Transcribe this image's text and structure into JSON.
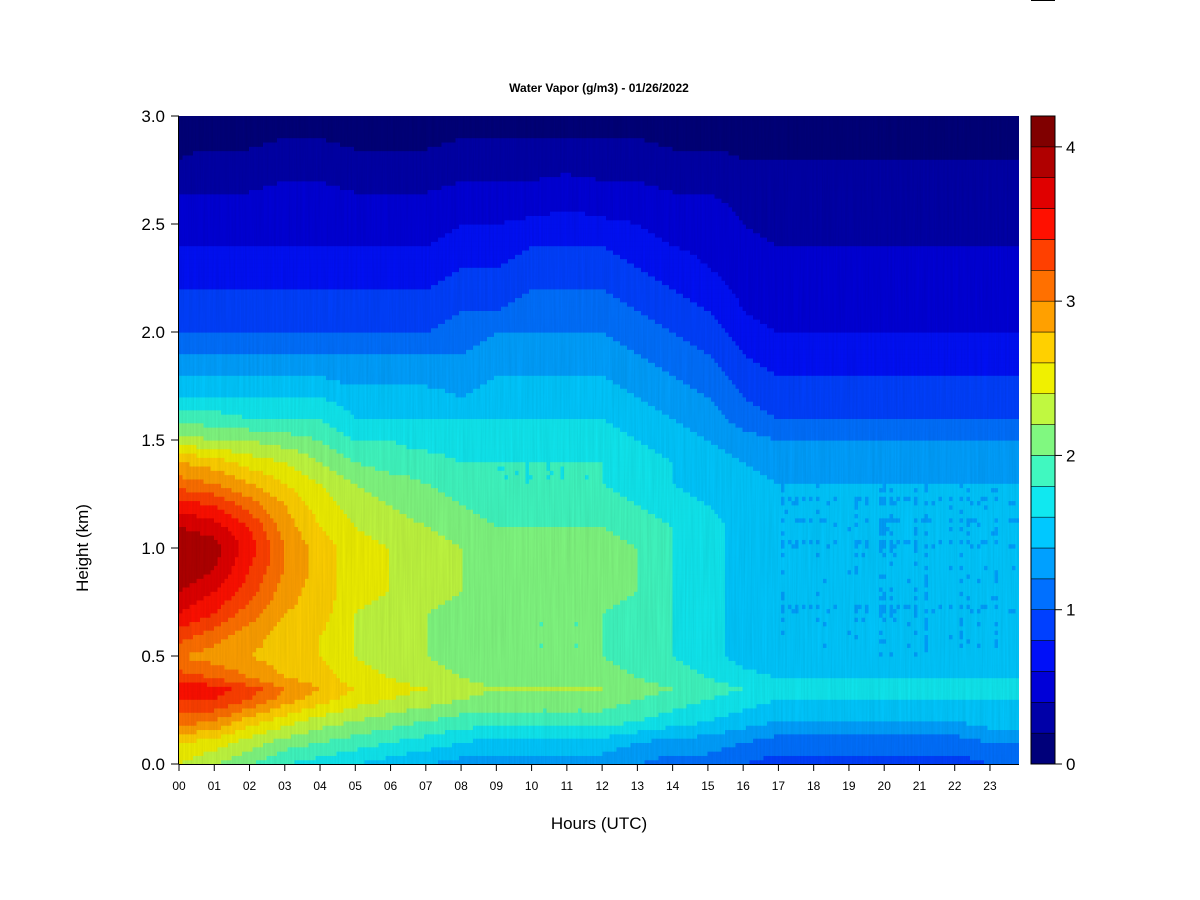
{
  "chart_data": {
    "type": "heatmap",
    "title": "Water Vapor (g/m3) - 01/26/2022",
    "xlabel": "Hours (UTC)",
    "ylabel": "Height (km)",
    "xlim": [
      0,
      24
    ],
    "ylim": [
      0.0,
      3.0
    ],
    "x_ticks": [
      "00",
      "01",
      "02",
      "03",
      "04",
      "05",
      "06",
      "07",
      "08",
      "09",
      "10",
      "11",
      "12",
      "13",
      "14",
      "15",
      "16",
      "17",
      "18",
      "19",
      "20",
      "21",
      "22",
      "23"
    ],
    "y_ticks": [
      "0.0",
      "0.5",
      "1.0",
      "1.5",
      "2.0",
      "2.5",
      "3.0"
    ],
    "colorbar": {
      "min": 0,
      "max": 4.2,
      "ticks": [
        "0",
        "1",
        "2",
        "3",
        "4"
      ],
      "colors": [
        "#00007a",
        "#0000a8",
        "#0000d8",
        "#0010f8",
        "#0040ff",
        "#0070ff",
        "#00a0ff",
        "#00c8ff",
        "#10e8f0",
        "#40f8c0",
        "#80f880",
        "#c0f840",
        "#f0f000",
        "#ffd000",
        "#ffa000",
        "#ff7000",
        "#ff4000",
        "#ff1000",
        "#e00000",
        "#b00000",
        "#800000"
      ]
    },
    "x_hours": [
      0,
      1,
      2,
      3,
      4,
      5,
      6,
      7,
      8,
      9,
      10,
      11,
      12,
      13,
      14,
      15,
      16,
      17,
      18,
      19,
      20,
      21,
      22,
      23,
      24
    ],
    "heights_km": [
      0.0,
      0.1,
      0.2,
      0.3,
      0.35,
      0.4,
      0.5,
      0.6,
      0.7,
      0.8,
      0.9,
      1.0,
      1.1,
      1.2,
      1.3,
      1.4,
      1.5,
      1.6,
      1.7,
      1.8,
      1.9,
      2.0,
      2.1,
      2.2,
      2.3,
      2.4,
      2.5,
      2.6,
      2.7,
      2.8,
      2.9,
      3.0
    ],
    "values": [
      [
        2.4,
        2.6,
        3.1,
        3.4,
        3.6,
        3.3,
        3.0,
        3.3,
        3.6,
        3.8,
        4.0,
        4.0,
        3.8,
        3.5,
        3.1,
        2.8,
        2.3,
        1.9,
        1.6,
        1.4,
        1.2,
        1.0,
        0.9,
        0.8,
        0.7,
        0.6,
        0.5,
        0.45,
        0.3,
        0.2,
        0.15,
        0.1
      ],
      [
        2.2,
        2.5,
        3.0,
        3.4,
        3.5,
        3.2,
        2.9,
        3.1,
        3.4,
        3.6,
        3.8,
        3.9,
        3.7,
        3.4,
        3.0,
        2.7,
        2.2,
        1.9,
        1.6,
        1.4,
        1.2,
        1.0,
        0.9,
        0.8,
        0.7,
        0.6,
        0.5,
        0.45,
        0.35,
        0.25,
        0.15,
        0.1
      ],
      [
        2.0,
        2.3,
        2.7,
        3.2,
        3.3,
        3.0,
        2.8,
        2.9,
        3.1,
        3.3,
        3.4,
        3.5,
        3.4,
        3.1,
        2.8,
        2.5,
        2.2,
        1.8,
        1.6,
        1.4,
        1.2,
        1.0,
        0.9,
        0.8,
        0.7,
        0.6,
        0.5,
        0.45,
        0.35,
        0.25,
        0.15,
        0.1
      ],
      [
        1.8,
        2.1,
        2.5,
        2.9,
        3.0,
        2.8,
        2.7,
        2.7,
        2.8,
        2.9,
        3.0,
        3.0,
        2.9,
        2.8,
        2.6,
        2.4,
        2.1,
        1.8,
        1.6,
        1.4,
        1.2,
        1.0,
        0.9,
        0.8,
        0.7,
        0.6,
        0.55,
        0.5,
        0.4,
        0.3,
        0.2,
        0.1
      ],
      [
        1.7,
        2.0,
        2.3,
        2.7,
        2.8,
        2.7,
        2.6,
        2.6,
        2.7,
        2.7,
        2.7,
        2.7,
        2.6,
        2.5,
        2.4,
        2.2,
        2.0,
        1.8,
        1.6,
        1.4,
        1.2,
        1.0,
        0.9,
        0.8,
        0.7,
        0.6,
        0.55,
        0.5,
        0.4,
        0.3,
        0.2,
        0.1
      ],
      [
        1.6,
        1.9,
        2.2,
        2.5,
        2.6,
        2.5,
        2.4,
        2.4,
        2.4,
        2.5,
        2.5,
        2.5,
        2.4,
        2.3,
        2.2,
        2.0,
        1.8,
        1.6,
        1.5,
        1.3,
        1.2,
        1.0,
        0.9,
        0.8,
        0.7,
        0.6,
        0.5,
        0.45,
        0.35,
        0.25,
        0.15,
        0.1
      ],
      [
        1.5,
        1.8,
        2.1,
        2.4,
        2.5,
        2.4,
        2.3,
        2.3,
        2.3,
        2.4,
        2.4,
        2.4,
        2.3,
        2.2,
        2.1,
        1.9,
        1.8,
        1.6,
        1.5,
        1.3,
        1.2,
        1.0,
        0.9,
        0.8,
        0.7,
        0.6,
        0.5,
        0.45,
        0.35,
        0.25,
        0.15,
        0.1
      ],
      [
        1.4,
        1.7,
        2.0,
        2.3,
        2.4,
        2.3,
        2.2,
        2.2,
        2.2,
        2.3,
        2.3,
        2.3,
        2.2,
        2.1,
        2.0,
        1.9,
        1.7,
        1.6,
        1.5,
        1.3,
        1.2,
        1.0,
        0.9,
        0.8,
        0.7,
        0.6,
        0.5,
        0.45,
        0.35,
        0.25,
        0.15,
        0.1
      ],
      [
        1.3,
        1.6,
        1.9,
        2.2,
        2.3,
        2.2,
        2.1,
        2.1,
        2.1,
        2.2,
        2.2,
        2.2,
        2.1,
        2.0,
        1.9,
        1.8,
        1.7,
        1.6,
        1.4,
        1.3,
        1.2,
        1.1,
        1.0,
        0.9,
        0.8,
        0.7,
        0.6,
        0.5,
        0.4,
        0.3,
        0.2,
        0.1
      ],
      [
        1.3,
        1.5,
        1.9,
        2.1,
        2.2,
        2.1,
        2.0,
        2.0,
        2.0,
        2.1,
        2.1,
        2.1,
        2.0,
        1.9,
        1.8,
        1.8,
        1.7,
        1.6,
        1.5,
        1.4,
        1.3,
        1.2,
        1.0,
        0.9,
        0.8,
        0.7,
        0.6,
        0.5,
        0.4,
        0.3,
        0.2,
        0.1
      ],
      [
        1.3,
        1.5,
        1.9,
        2.1,
        2.2,
        2.1,
        2.0,
        2.0,
        2.0,
        2.1,
        2.1,
        2.1,
        2.0,
        1.9,
        1.8,
        1.8,
        1.7,
        1.6,
        1.5,
        1.4,
        1.3,
        1.2,
        1.1,
        1.0,
        0.9,
        0.8,
        0.65,
        0.5,
        0.4,
        0.3,
        0.2,
        0.1
      ],
      [
        1.3,
        1.5,
        1.9,
        2.1,
        2.2,
        2.1,
        2.0,
        2.0,
        2.0,
        2.1,
        2.1,
        2.1,
        2.0,
        1.9,
        1.8,
        1.8,
        1.7,
        1.6,
        1.5,
        1.4,
        1.3,
        1.2,
        1.1,
        1.0,
        0.9,
        0.8,
        0.7,
        0.55,
        0.45,
        0.3,
        0.2,
        0.1
      ],
      [
        1.3,
        1.5,
        1.9,
        2.1,
        2.2,
        2.1,
        2.0,
        2.0,
        2.0,
        2.1,
        2.1,
        2.1,
        2.0,
        1.9,
        1.8,
        1.8,
        1.7,
        1.6,
        1.5,
        1.4,
        1.3,
        1.2,
        1.1,
        1.0,
        0.9,
        0.8,
        0.65,
        0.5,
        0.4,
        0.3,
        0.2,
        0.1
      ],
      [
        1.2,
        1.4,
        1.8,
        2.0,
        2.1,
        2.0,
        1.9,
        1.9,
        1.9,
        2.0,
        2.0,
        2.0,
        1.9,
        1.8,
        1.7,
        1.7,
        1.6,
        1.5,
        1.4,
        1.3,
        1.2,
        1.1,
        1.0,
        0.9,
        0.8,
        0.7,
        0.6,
        0.5,
        0.4,
        0.3,
        0.2,
        0.1
      ],
      [
        1.1,
        1.3,
        1.7,
        1.9,
        2.0,
        1.9,
        1.8,
        1.8,
        1.8,
        1.8,
        1.8,
        1.8,
        1.8,
        1.7,
        1.6,
        1.6,
        1.5,
        1.4,
        1.3,
        1.2,
        1.1,
        1.0,
        0.9,
        0.8,
        0.7,
        0.6,
        0.5,
        0.45,
        0.35,
        0.25,
        0.15,
        0.1
      ],
      [
        1.1,
        1.3,
        1.6,
        1.8,
        1.9,
        1.8,
        1.7,
        1.7,
        1.7,
        1.7,
        1.7,
        1.7,
        1.7,
        1.6,
        1.5,
        1.5,
        1.4,
        1.3,
        1.2,
        1.1,
        1.0,
        0.9,
        0.8,
        0.7,
        0.6,
        0.55,
        0.5,
        0.45,
        0.35,
        0.25,
        0.15,
        0.1
      ],
      [
        1.0,
        1.2,
        1.5,
        1.7,
        1.8,
        1.7,
        1.5,
        1.5,
        1.5,
        1.5,
        1.5,
        1.5,
        1.5,
        1.5,
        1.5,
        1.4,
        1.3,
        1.1,
        1.0,
        0.9,
        0.8,
        0.7,
        0.6,
        0.55,
        0.5,
        0.45,
        0.4,
        0.35,
        0.3,
        0.2,
        0.15,
        0.1
      ],
      [
        0.9,
        1.1,
        1.4,
        1.6,
        1.7,
        1.6,
        1.4,
        1.4,
        1.4,
        1.4,
        1.4,
        1.4,
        1.4,
        1.4,
        1.4,
        1.3,
        1.2,
        1.0,
        0.9,
        0.8,
        0.7,
        0.6,
        0.5,
        0.5,
        0.45,
        0.4,
        0.35,
        0.3,
        0.25,
        0.2,
        0.15,
        0.1
      ],
      [
        0.9,
        1.1,
        1.4,
        1.6,
        1.7,
        1.6,
        1.4,
        1.4,
        1.4,
        1.4,
        1.4,
        1.4,
        1.4,
        1.4,
        1.4,
        1.3,
        1.2,
        1.0,
        0.9,
        0.8,
        0.7,
        0.6,
        0.5,
        0.5,
        0.45,
        0.4,
        0.35,
        0.3,
        0.25,
        0.2,
        0.15,
        0.1
      ],
      [
        0.9,
        1.1,
        1.4,
        1.6,
        1.7,
        1.6,
        1.4,
        1.4,
        1.4,
        1.4,
        1.4,
        1.4,
        1.4,
        1.4,
        1.4,
        1.3,
        1.2,
        1.0,
        0.9,
        0.8,
        0.7,
        0.6,
        0.5,
        0.5,
        0.45,
        0.4,
        0.35,
        0.3,
        0.25,
        0.2,
        0.15,
        0.1
      ],
      [
        0.9,
        1.1,
        1.4,
        1.6,
        1.7,
        1.6,
        1.4,
        1.4,
        1.4,
        1.4,
        1.4,
        1.4,
        1.4,
        1.4,
        1.4,
        1.3,
        1.2,
        1.0,
        0.9,
        0.8,
        0.7,
        0.6,
        0.5,
        0.5,
        0.45,
        0.4,
        0.35,
        0.3,
        0.25,
        0.2,
        0.15,
        0.1
      ],
      [
        0.9,
        1.1,
        1.4,
        1.6,
        1.7,
        1.6,
        1.4,
        1.4,
        1.4,
        1.4,
        1.4,
        1.4,
        1.4,
        1.4,
        1.4,
        1.3,
        1.2,
        1.0,
        0.9,
        0.8,
        0.7,
        0.6,
        0.5,
        0.5,
        0.45,
        0.4,
        0.35,
        0.3,
        0.25,
        0.2,
        0.15,
        0.1
      ],
      [
        0.9,
        1.1,
        1.4,
        1.6,
        1.7,
        1.6,
        1.4,
        1.4,
        1.4,
        1.4,
        1.4,
        1.4,
        1.4,
        1.4,
        1.4,
        1.3,
        1.2,
        1.0,
        0.9,
        0.8,
        0.7,
        0.6,
        0.5,
        0.5,
        0.45,
        0.4,
        0.35,
        0.3,
        0.25,
        0.2,
        0.15,
        0.1
      ],
      [
        1.0,
        1.2,
        1.5,
        1.6,
        1.7,
        1.6,
        1.4,
        1.4,
        1.4,
        1.4,
        1.4,
        1.4,
        1.4,
        1.4,
        1.4,
        1.3,
        1.2,
        1.0,
        0.9,
        0.8,
        0.7,
        0.6,
        0.5,
        0.5,
        0.45,
        0.4,
        0.35,
        0.3,
        0.25,
        0.2,
        0.15,
        0.1
      ],
      [
        1.0,
        1.2,
        1.5,
        1.6,
        1.7,
        1.6,
        1.4,
        1.4,
        1.4,
        1.4,
        1.4,
        1.4,
        1.4,
        1.4,
        1.4,
        1.3,
        1.2,
        1.0,
        0.9,
        0.8,
        0.7,
        0.6,
        0.5,
        0.5,
        0.45,
        0.4,
        0.35,
        0.3,
        0.25,
        0.2,
        0.15,
        0.1
      ]
    ]
  }
}
